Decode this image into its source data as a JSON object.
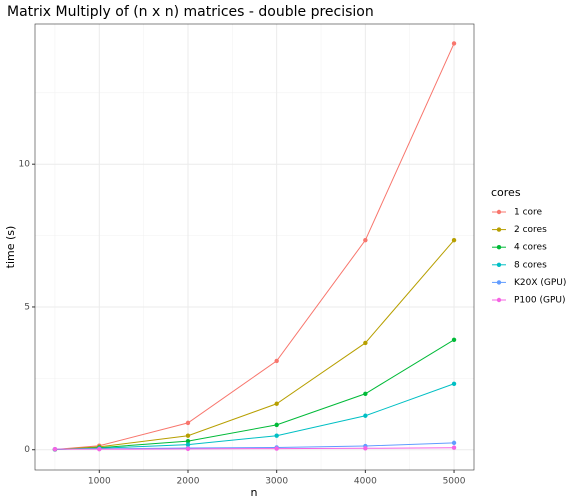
{
  "chart_data": {
    "type": "line",
    "title": "Matrix Multiply of (n x n) matrices - double precision",
    "x_label": "n",
    "y_label": "time (s)",
    "legend_title": "cores",
    "x": [
      500,
      1000,
      2000,
      3000,
      4000,
      5000
    ],
    "series": [
      {
        "name": "1 core",
        "color": "#F8766D",
        "values": [
          0.01,
          0.14,
          0.94,
          3.11,
          7.34,
          14.23
        ]
      },
      {
        "name": "2 cores",
        "color": "#B79F00",
        "values": [
          0.01,
          0.1,
          0.49,
          1.61,
          3.74,
          7.34
        ]
      },
      {
        "name": "4 cores",
        "color": "#00BA38",
        "values": [
          0.01,
          0.07,
          0.3,
          0.87,
          1.96,
          3.85
        ]
      },
      {
        "name": "8 cores",
        "color": "#00BFC4",
        "values": [
          0.01,
          0.05,
          0.18,
          0.49,
          1.19,
          2.31
        ]
      },
      {
        "name": "K20X (GPU)",
        "color": "#619CFF",
        "values": [
          0.02,
          0.03,
          0.06,
          0.08,
          0.13,
          0.24
        ]
      },
      {
        "name": "P100 (GPU)",
        "color": "#F564E3",
        "values": [
          0.02,
          0.02,
          0.03,
          0.04,
          0.05,
          0.07
        ]
      }
    ],
    "xlim": [
      275,
      5225
    ],
    "xticks": [
      1000,
      2000,
      3000,
      4000,
      5000
    ],
    "x_minor_ticks": [
      500,
      1500,
      2500,
      3500,
      4500
    ],
    "ylim": [
      -0.71,
      14.91
    ],
    "yticks": [
      0,
      5,
      10
    ],
    "y_minor_ticks": [
      2.5,
      7.5,
      12.5
    ],
    "grid": true,
    "legend": "right"
  }
}
